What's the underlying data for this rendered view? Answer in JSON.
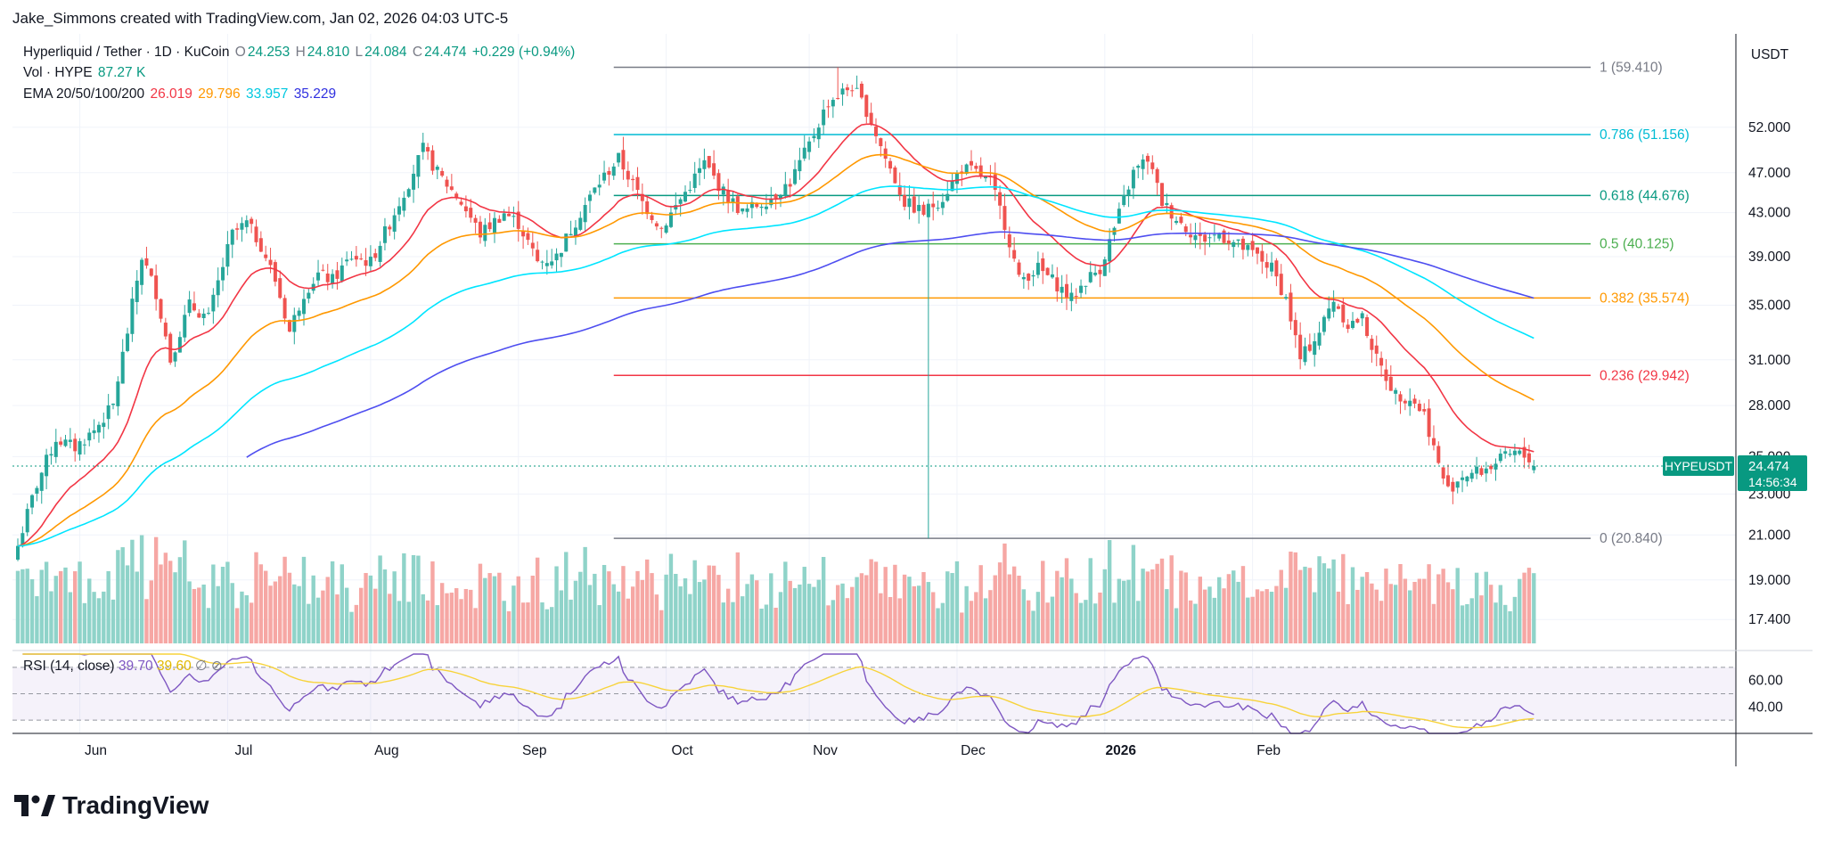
{
  "header": {
    "credit": "Jake_Simmons created with TradingView.com, Jan 02, 2026 04:03 UTC-5",
    "symbol": "Hyperliquid / Tether · 1D · KuCoin",
    "o_label": "O",
    "o": "24.253",
    "h_label": "H",
    "h": "24.810",
    "l_label": "L",
    "l": "24.084",
    "c_label": "C",
    "c": "24.474",
    "change": "+0.229 (+0.94%)",
    "vol_label": "Vol · HYPE",
    "vol": "87.27 K",
    "ema_label": "EMA 20/50/100/200",
    "ema20": "26.019",
    "ema50": "29.796",
    "ema100": "33.957",
    "ema200": "35.229",
    "rsi_label": "RSI (14, close)",
    "rsi": "39.70",
    "rsi_ma": "39.60"
  },
  "colors": {
    "up": "#26a69a",
    "down": "#ef5350",
    "ema20": "#f23645",
    "ema50": "#ff9800",
    "ema100": "#00e5ff",
    "ema200": "#4e4ef0",
    "rsi": "#7e57c2",
    "rsi_ma": "#f7d33a",
    "accent": "#089981"
  },
  "axis": {
    "currency": "USDT",
    "price_ticks": [
      "52.000",
      "47.000",
      "43.000",
      "39.000",
      "35.000",
      "31.000",
      "28.000",
      "25.000",
      "23.000",
      "21.000",
      "19.000",
      "17.400"
    ],
    "rsi_ticks": [
      "60.00",
      "40.00"
    ],
    "time_ticks": [
      "Jun",
      "Jul",
      "Aug",
      "Sep",
      "Oct",
      "Nov",
      "Dec",
      "2026",
      "Feb"
    ]
  },
  "last_price": {
    "symbol": "HYPEUSDT",
    "price": "24.474",
    "countdown": "14:56:34"
  },
  "brand": {
    "name": "TradingView"
  },
  "chart_data": {
    "type": "candlestick",
    "title": "Hyperliquid / Tether · 1D · KuCoin",
    "y_scale": "log",
    "ylim": [
      16.5,
      64
    ],
    "fibonacci": [
      {
        "level": "1",
        "price": 59.41,
        "label": "1 (59.410)",
        "color": "#787b86"
      },
      {
        "level": "0.786",
        "price": 51.156,
        "label": "0.786 (51.156)",
        "color": "#00bcd4"
      },
      {
        "level": "0.618",
        "price": 44.676,
        "label": "0.618 (44.676)",
        "color": "#089981"
      },
      {
        "level": "0.5",
        "price": 40.125,
        "label": "0.5 (40.125)",
        "color": "#4caf50"
      },
      {
        "level": "0.382",
        "price": 35.574,
        "label": "0.382 (35.574)",
        "color": "#ff9800"
      },
      {
        "level": "0.236",
        "price": 29.942,
        "label": "0.236 (29.942)",
        "color": "#f23645"
      },
      {
        "level": "0",
        "price": 20.84,
        "label": "0 (20.840)",
        "color": "#787b86"
      }
    ],
    "close_anchors": [
      [
        0,
        20.5
      ],
      [
        4,
        23.5
      ],
      [
        8,
        26
      ],
      [
        12,
        25.5
      ],
      [
        16,
        26.5
      ],
      [
        20,
        28
      ],
      [
        23,
        33
      ],
      [
        26,
        39
      ],
      [
        29,
        36
      ],
      [
        32,
        31
      ],
      [
        36,
        35
      ],
      [
        40,
        34
      ],
      [
        45,
        41
      ],
      [
        48,
        42
      ],
      [
        51,
        40
      ],
      [
        54,
        37
      ],
      [
        57,
        33
      ],
      [
        60,
        36
      ],
      [
        63,
        37.5
      ],
      [
        66,
        37
      ],
      [
        70,
        39
      ],
      [
        74,
        38.5
      ],
      [
        78,
        42
      ],
      [
        82,
        46
      ],
      [
        85,
        49.5
      ],
      [
        88,
        47
      ],
      [
        93,
        44
      ],
      [
        97,
        41
      ],
      [
        102,
        43
      ],
      [
        105,
        42
      ],
      [
        109,
        38.5
      ],
      [
        113,
        39
      ],
      [
        118,
        43
      ],
      [
        122,
        46
      ],
      [
        126,
        48.5
      ],
      [
        131,
        44
      ],
      [
        135,
        41.5
      ],
      [
        140,
        45
      ],
      [
        144,
        48
      ],
      [
        148,
        45
      ],
      [
        152,
        43
      ],
      [
        158,
        44.5
      ],
      [
        162,
        46
      ],
      [
        166,
        50
      ],
      [
        170,
        55
      ],
      [
        175,
        57
      ],
      [
        178,
        54
      ],
      [
        182,
        48.5
      ],
      [
        186,
        44
      ],
      [
        190,
        43
      ],
      [
        194,
        44.5
      ],
      [
        198,
        47.5
      ],
      [
        201,
        47
      ],
      [
        204,
        46
      ],
      [
        207,
        42
      ],
      [
        210,
        37
      ],
      [
        214,
        38
      ],
      [
        217,
        37
      ],
      [
        221,
        35.5
      ],
      [
        224,
        37
      ],
      [
        227,
        38
      ],
      [
        230,
        41.5
      ],
      [
        234,
        47
      ],
      [
        237,
        48.5
      ],
      [
        240,
        44
      ],
      [
        244,
        42
      ],
      [
        248,
        40.5
      ],
      [
        252,
        41
      ],
      [
        256,
        40
      ],
      [
        260,
        39
      ],
      [
        263,
        38
      ],
      [
        266,
        35.5
      ],
      [
        269,
        31
      ],
      [
        273,
        33
      ],
      [
        276,
        35.5
      ],
      [
        279,
        33.5
      ],
      [
        282,
        34
      ],
      [
        285,
        31
      ],
      [
        289,
        28.7
      ],
      [
        292,
        28.5
      ],
      [
        295,
        27.5
      ],
      [
        298,
        24.5
      ],
      [
        300,
        23.2
      ],
      [
        303,
        24
      ],
      [
        307,
        24.2
      ],
      [
        311,
        24.8
      ],
      [
        314,
        25.2
      ],
      [
        317,
        24.9
      ],
      [
        318,
        24.474
      ]
    ],
    "volume_ref": "87.27 K",
    "rsi_range": [
      20,
      80
    ]
  }
}
